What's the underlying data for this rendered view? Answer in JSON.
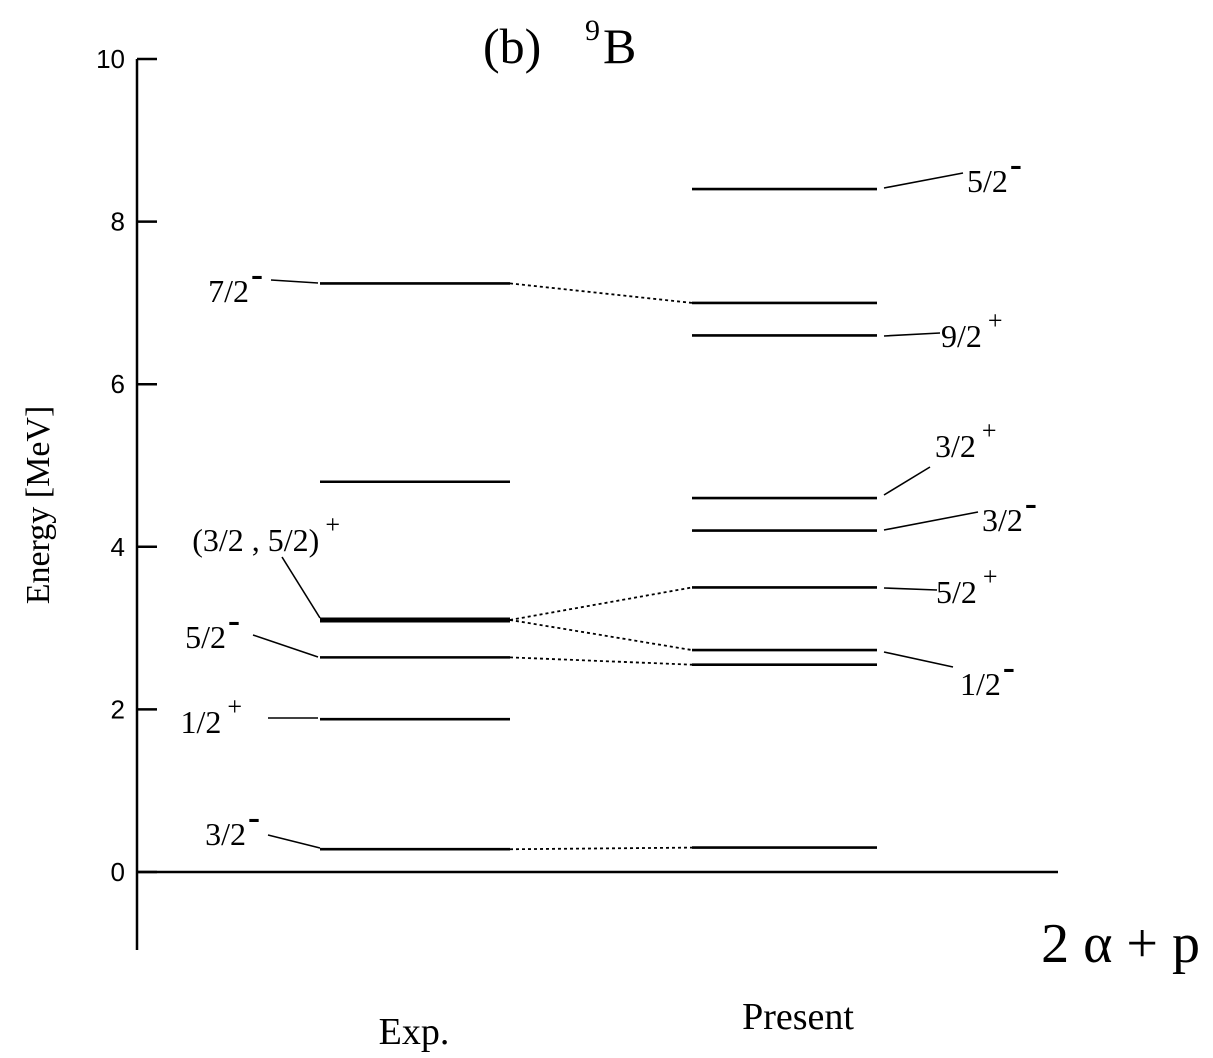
{
  "chart_data": {
    "type": "level-scheme",
    "title_prefix": "(b)",
    "title_mass": "9",
    "title_element": "B",
    "ylabel": "Energy [MeV]",
    "ylim": [
      -1,
      10
    ],
    "yticks": [
      0,
      2,
      4,
      6,
      8,
      10
    ],
    "threshold_label": "2 α + p",
    "threshold_energy": 0,
    "columns": [
      {
        "id": "exp",
        "name": "Exp.",
        "levels": [
          {
            "energy": 0.28,
            "spin": "3/2",
            "parity": "-"
          },
          {
            "energy": 1.88,
            "spin": "1/2",
            "parity": "+"
          },
          {
            "energy": 2.64,
            "spin": "5/2",
            "parity": "-"
          },
          {
            "energy": 3.1,
            "spin": "(3/2 , 5/2)",
            "parity": "+"
          },
          {
            "energy": 4.8,
            "spin": "",
            "parity": ""
          },
          {
            "energy": 7.24,
            "spin": "7/2",
            "parity": "-"
          }
        ]
      },
      {
        "id": "present",
        "name": "Present",
        "levels": [
          {
            "energy": 0.3,
            "spin": "",
            "parity": ""
          },
          {
            "energy": 2.55,
            "spin": "1/2",
            "parity": "-"
          },
          {
            "energy": 2.73,
            "spin": "",
            "parity": ""
          },
          {
            "energy": 3.5,
            "spin": "5/2",
            "parity": "+"
          },
          {
            "energy": 4.2,
            "spin": "3/2",
            "parity": "-"
          },
          {
            "energy": 4.6,
            "spin": "3/2",
            "parity": "+"
          },
          {
            "energy": 6.6,
            "spin": "9/2",
            "parity": "+"
          },
          {
            "energy": 7.0,
            "spin": "",
            "parity": ""
          },
          {
            "energy": 8.4,
            "spin": "5/2",
            "parity": "-"
          }
        ]
      }
    ],
    "connections": [
      {
        "from": 0.28,
        "to": 0.3
      },
      {
        "from": 2.64,
        "to": 2.55
      },
      {
        "from": 3.1,
        "to": 2.73
      },
      {
        "from": 3.1,
        "to": 3.5
      },
      {
        "from": 7.24,
        "to": 7.0
      }
    ]
  }
}
